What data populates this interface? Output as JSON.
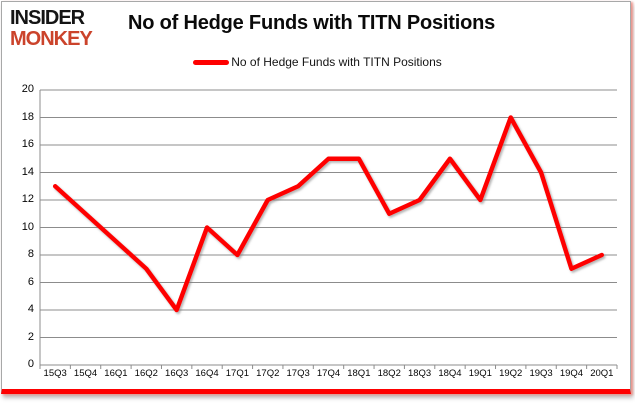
{
  "logo": {
    "line1": "INSIDER",
    "line2": "MONKEY"
  },
  "header": {
    "title": "No of Hedge Funds with TITN Positions"
  },
  "legend": {
    "label": "No of Hedge Funds with TITN Positions",
    "color": "#fe0000"
  },
  "colors": {
    "line": "#fe0000",
    "grid": "#8c8c8c",
    "axis": "#8c8c8c",
    "text": "#050505",
    "logo_accent": "#cb432b",
    "frame_bottom": "#fe0000"
  },
  "chart_data": {
    "type": "line",
    "title": "No of Hedge Funds with TITN Positions",
    "series": [
      {
        "name": "No of Hedge Funds with TITN Positions",
        "values": [
          13,
          11,
          9,
          7,
          4,
          10,
          8,
          12,
          13,
          15,
          15,
          11,
          12,
          15,
          12,
          18,
          14,
          7,
          8
        ]
      }
    ],
    "categories": [
      "15Q3",
      "15Q4",
      "16Q1",
      "16Q2",
      "16Q3",
      "16Q4",
      "17Q1",
      "17Q2",
      "17Q3",
      "17Q4",
      "18Q1",
      "18Q2",
      "18Q3",
      "18Q4",
      "19Q1",
      "19Q2",
      "19Q3",
      "19Q4",
      "20Q1"
    ],
    "xlabel": "",
    "ylabel": "",
    "ylim": [
      0,
      20
    ],
    "yticks": [
      0,
      2,
      4,
      6,
      8,
      10,
      12,
      14,
      16,
      18,
      20
    ],
    "grid": true,
    "legend_position": "top"
  }
}
